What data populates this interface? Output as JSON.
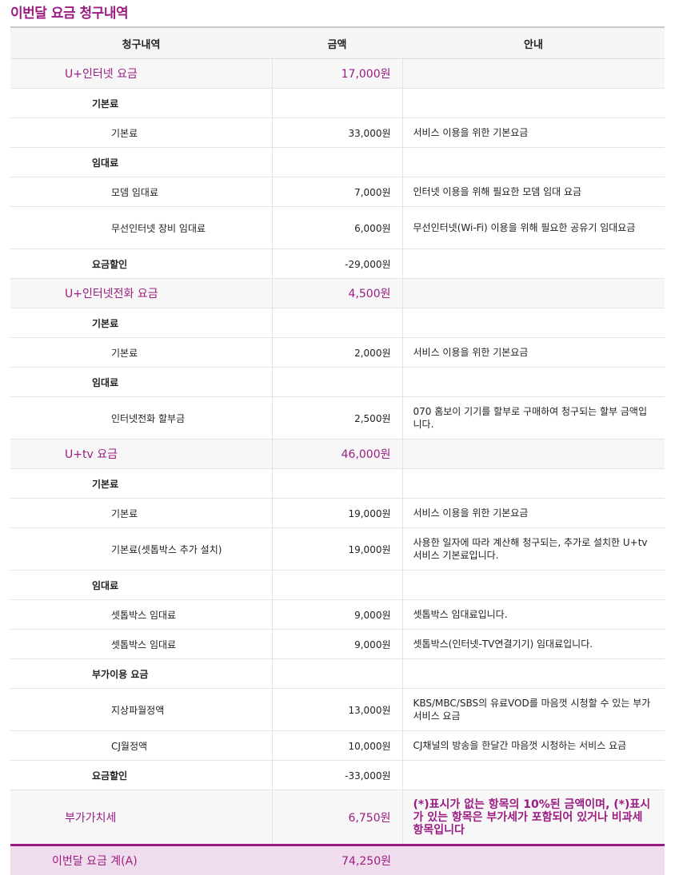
{
  "title": "이번달 요금 청구내역",
  "headers": [
    "청구내역",
    "금액",
    "안내"
  ],
  "rows": [
    {
      "type": "sec",
      "name": "U+인터넷 요금",
      "amount": "17,000원",
      "note": ""
    },
    {
      "type": "sub",
      "name": "기본료",
      "amount": "",
      "note": ""
    },
    {
      "type": "item",
      "name": "기본료",
      "amount": "33,000원",
      "note": "서비스 이용을 위한 기본요금"
    },
    {
      "type": "sub",
      "name": "임대료",
      "amount": "",
      "note": ""
    },
    {
      "type": "item",
      "name": "모뎀 임대료",
      "amount": "7,000원",
      "note": "인터넷 이용을 위해 필요한 모뎀 임대 요금"
    },
    {
      "type": "item tall",
      "name": "무선인터넷 장비 임대료",
      "amount": "6,000원",
      "note": "무선인터넷(Wi-Fi) 이용을 위해 필요한 공유기 임대요금"
    },
    {
      "type": "sub",
      "name": "요금할인",
      "amount": "-29,000원",
      "note": ""
    },
    {
      "type": "sec",
      "name": "U+인터넷전화 요금",
      "amount": "4,500원",
      "note": ""
    },
    {
      "type": "sub",
      "name": "기본료",
      "amount": "",
      "note": ""
    },
    {
      "type": "item",
      "name": "기본료",
      "amount": "2,000원",
      "note": "서비스 이용을 위한 기본요금"
    },
    {
      "type": "sub",
      "name": "임대료",
      "amount": "",
      "note": ""
    },
    {
      "type": "item tall",
      "name": "인터넷전화 할부금",
      "amount": "2,500원",
      "note": "070 홈보이 기기를 할부로 구매하여 청구되는 할부 금액입니다."
    },
    {
      "type": "sec",
      "name": "U+tv 요금",
      "amount": "46,000원",
      "note": ""
    },
    {
      "type": "sub",
      "name": "기본료",
      "amount": "",
      "note": ""
    },
    {
      "type": "item",
      "name": "기본료",
      "amount": "19,000원",
      "note": "서비스 이용을 위한 기본요금"
    },
    {
      "type": "item tall",
      "name": "기본료(셋톱박스 추가 설치)",
      "amount": "19,000원",
      "note": "사용한 일자에 따라 계산해 청구되는, 추가로 설치한 U+tv 서비스 기본료입니다."
    },
    {
      "type": "sub",
      "name": "임대료",
      "amount": "",
      "note": ""
    },
    {
      "type": "item",
      "name": "셋톱박스 임대료",
      "amount": "9,000원",
      "note": "셋톱박스 임대료입니다."
    },
    {
      "type": "item",
      "name": "셋톱박스 임대료",
      "amount": "9,000원",
      "note": "셋톱박스(인터넷-TV연결기기) 임대료입니다."
    },
    {
      "type": "sub",
      "name": "부가이용 요금",
      "amount": "",
      "note": ""
    },
    {
      "type": "item tall",
      "name": "지상파월정액",
      "amount": "13,000원",
      "note": "KBS/MBC/SBS의 유료VOD를 마음껏 시청할 수 있는 부가서비스 요금"
    },
    {
      "type": "item",
      "name": "CJ월정액",
      "amount": "10,000원",
      "note": "CJ채널의 방송을 한달간 마음껏 시청하는 서비스 요금"
    },
    {
      "type": "sub",
      "name": "요금할인",
      "amount": "-33,000원",
      "note": ""
    },
    {
      "type": "sec vat",
      "name": "부가가치세",
      "amount": "6,750원",
      "note": "(*)표시가 없는 항목의 10%된 금액이며, (*)표시가 있는 항목은 부가세가 포함되어 있거나 비과세 항목입니다"
    }
  ],
  "total": {
    "name": "이번달 요금 계(A)",
    "amount": "74,250원"
  },
  "colors": {
    "accent": "#9b1c82",
    "total_bg": "#efdcec"
  }
}
